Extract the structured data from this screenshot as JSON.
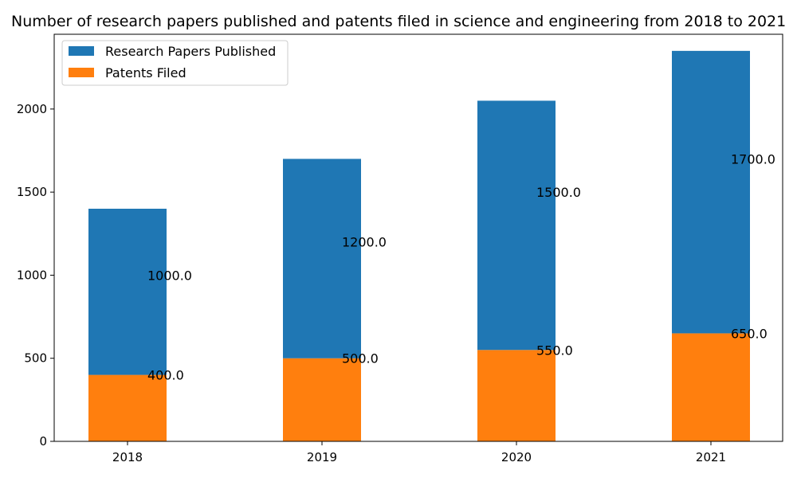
{
  "chart_data": {
    "type": "bar",
    "stacked": true,
    "title": "Number of research papers published and patents filed in science and engineering from 2018 to 2021",
    "categories": [
      "2018",
      "2019",
      "2020",
      "2021"
    ],
    "series": [
      {
        "name": "Patents Filed",
        "values": [
          400,
          500,
          550,
          650
        ],
        "labels": [
          "400.0",
          "500.0",
          "550.0",
          "650.0"
        ],
        "color": "#ff7f0e"
      },
      {
        "name": "Research Papers Published",
        "values": [
          1000,
          1200,
          1500,
          1700
        ],
        "labels": [
          "1000.0",
          "1200.0",
          "1500.0",
          "1700.0"
        ],
        "color": "#1f77b4"
      }
    ],
    "legend_order": [
      "Research Papers Published",
      "Patents Filed"
    ],
    "xlabel": "",
    "ylabel": "",
    "ylim": [
      0,
      2450
    ],
    "yticks": [
      0,
      500,
      1000,
      1500,
      2000
    ],
    "grid": false,
    "legend_position": "top-left"
  }
}
